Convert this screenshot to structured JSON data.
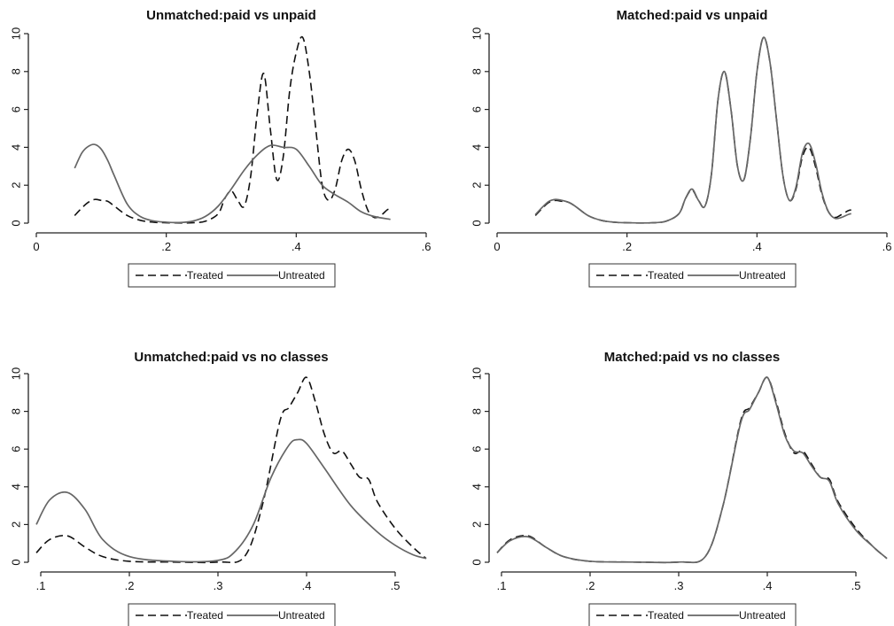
{
  "colors": {
    "treated": "#111111",
    "untreated": "#666666",
    "background": "#ffffff"
  },
  "legend": {
    "treated_label": "Treated",
    "untreated_label": "Untreated"
  },
  "chart_data": [
    {
      "type": "line",
      "title": "Unmatched:paid vs unpaid",
      "xlabel": "",
      "ylabel": "",
      "xlim": [
        0,
        0.6
      ],
      "ylim": [
        0,
        10
      ],
      "xticks": [
        0,
        0.2,
        0.4,
        0.6
      ],
      "xtick_labels": [
        "0",
        ".2",
        ".4",
        ".6"
      ],
      "yticks": [
        0,
        2,
        4,
        6,
        8,
        10
      ],
      "ytick_labels": [
        "0",
        "2",
        "4",
        "6",
        "8",
        "10"
      ],
      "legend_position": "bottom",
      "series": [
        {
          "name": "Treated",
          "style": "dashed",
          "x": [
            0.059,
            0.07,
            0.08,
            0.09,
            0.1,
            0.11,
            0.12,
            0.14,
            0.16,
            0.18,
            0.2,
            0.22,
            0.24,
            0.26,
            0.28,
            0.29,
            0.3,
            0.31,
            0.32,
            0.33,
            0.34,
            0.35,
            0.36,
            0.37,
            0.38,
            0.39,
            0.4,
            0.41,
            0.42,
            0.43,
            0.44,
            0.45,
            0.46,
            0.47,
            0.48,
            0.49,
            0.5,
            0.51,
            0.52,
            0.53,
            0.54,
            0.545
          ],
          "y": [
            0.4,
            0.8,
            1.1,
            1.25,
            1.2,
            1.15,
            0.9,
            0.4,
            0.15,
            0.05,
            0.02,
            0.01,
            0.02,
            0.1,
            0.5,
            1.3,
            1.7,
            1.2,
            0.9,
            2.5,
            5.8,
            7.9,
            5.0,
            2.3,
            3.5,
            7.0,
            9.0,
            9.8,
            8.0,
            5.0,
            2.0,
            1.2,
            1.8,
            3.3,
            3.9,
            3.3,
            1.8,
            0.7,
            0.3,
            0.4,
            0.7,
            0.75
          ]
        },
        {
          "name": "Untreated",
          "style": "solid",
          "x": [
            0.059,
            0.07,
            0.08,
            0.09,
            0.1,
            0.11,
            0.12,
            0.14,
            0.16,
            0.18,
            0.2,
            0.22,
            0.24,
            0.26,
            0.28,
            0.3,
            0.32,
            0.34,
            0.36,
            0.38,
            0.4,
            0.42,
            0.44,
            0.46,
            0.48,
            0.5,
            0.52,
            0.545
          ],
          "y": [
            2.9,
            3.7,
            4.05,
            4.15,
            3.9,
            3.3,
            2.5,
            1.0,
            0.35,
            0.12,
            0.05,
            0.03,
            0.1,
            0.35,
            0.9,
            1.8,
            2.8,
            3.6,
            4.1,
            4.0,
            3.9,
            3.0,
            2.0,
            1.5,
            1.1,
            0.6,
            0.35,
            0.2
          ]
        }
      ]
    },
    {
      "type": "line",
      "title": "Matched:paid vs unpaid",
      "xlabel": "",
      "ylabel": "",
      "xlim": [
        0,
        0.6
      ],
      "ylim": [
        0,
        10
      ],
      "xticks": [
        0,
        0.2,
        0.4,
        0.6
      ],
      "xtick_labels": [
        "0",
        ".2",
        ".4",
        ".6"
      ],
      "yticks": [
        0,
        2,
        4,
        6,
        8,
        10
      ],
      "ytick_labels": [
        "0",
        "2",
        "4",
        "6",
        "8",
        "10"
      ],
      "legend_position": "bottom",
      "series": [
        {
          "name": "Treated",
          "style": "dashed",
          "x": [
            0.059,
            0.07,
            0.08,
            0.09,
            0.1,
            0.11,
            0.12,
            0.14,
            0.16,
            0.18,
            0.2,
            0.22,
            0.24,
            0.26,
            0.28,
            0.29,
            0.3,
            0.31,
            0.32,
            0.33,
            0.34,
            0.35,
            0.36,
            0.37,
            0.38,
            0.39,
            0.4,
            0.41,
            0.42,
            0.43,
            0.44,
            0.45,
            0.46,
            0.47,
            0.48,
            0.49,
            0.5,
            0.51,
            0.52,
            0.53,
            0.54,
            0.545
          ],
          "y": [
            0.4,
            0.8,
            1.1,
            1.2,
            1.15,
            1.1,
            0.9,
            0.4,
            0.15,
            0.05,
            0.02,
            0.01,
            0.02,
            0.1,
            0.5,
            1.3,
            1.75,
            1.2,
            0.9,
            2.6,
            6.5,
            8.0,
            6.0,
            3.0,
            2.3,
            4.5,
            8.0,
            9.8,
            8.5,
            5.5,
            2.5,
            1.2,
            1.8,
            3.5,
            4.0,
            3.0,
            1.5,
            0.6,
            0.3,
            0.45,
            0.65,
            0.7
          ]
        },
        {
          "name": "Untreated",
          "style": "solid",
          "x": [
            0.059,
            0.07,
            0.08,
            0.09,
            0.1,
            0.11,
            0.12,
            0.14,
            0.16,
            0.18,
            0.2,
            0.22,
            0.24,
            0.26,
            0.28,
            0.29,
            0.3,
            0.31,
            0.32,
            0.33,
            0.34,
            0.35,
            0.36,
            0.37,
            0.38,
            0.39,
            0.4,
            0.41,
            0.42,
            0.43,
            0.44,
            0.45,
            0.46,
            0.47,
            0.48,
            0.49,
            0.5,
            0.51,
            0.52,
            0.53,
            0.54,
            0.545
          ],
          "y": [
            0.45,
            0.85,
            1.15,
            1.25,
            1.2,
            1.1,
            0.9,
            0.4,
            0.15,
            0.05,
            0.02,
            0.01,
            0.02,
            0.1,
            0.5,
            1.3,
            1.8,
            1.2,
            0.9,
            2.6,
            6.5,
            8.0,
            6.0,
            3.0,
            2.3,
            4.5,
            8.0,
            9.8,
            8.5,
            5.5,
            2.5,
            1.2,
            1.9,
            3.7,
            4.2,
            3.2,
            1.6,
            0.6,
            0.25,
            0.3,
            0.45,
            0.5
          ]
        }
      ]
    },
    {
      "type": "line",
      "title": "Unmatched:paid vs no classes",
      "xlabel": "",
      "ylabel": "",
      "xlim": [
        0.095,
        0.535
      ],
      "ylim": [
        0,
        10
      ],
      "xticks": [
        0.1,
        0.2,
        0.3,
        0.4,
        0.5
      ],
      "xtick_labels": [
        ".1",
        ".2",
        ".3",
        ".4",
        ".5"
      ],
      "yticks": [
        0,
        2,
        4,
        6,
        8,
        10
      ],
      "ytick_labels": [
        "0",
        "2",
        "4",
        "6",
        "8",
        "10"
      ],
      "legend_position": "bottom",
      "series": [
        {
          "name": "Treated",
          "style": "dashed",
          "x": [
            0.095,
            0.11,
            0.13,
            0.15,
            0.17,
            0.2,
            0.25,
            0.3,
            0.33,
            0.35,
            0.37,
            0.38,
            0.39,
            0.4,
            0.41,
            0.42,
            0.43,
            0.44,
            0.45,
            0.46,
            0.47,
            0.48,
            0.5,
            0.52,
            0.535
          ],
          "y": [
            0.5,
            1.2,
            1.4,
            0.8,
            0.3,
            0.05,
            0.01,
            0.01,
            0.3,
            3.0,
            7.5,
            8.2,
            9.0,
            9.8,
            8.5,
            6.8,
            5.8,
            5.9,
            5.2,
            4.5,
            4.4,
            3.2,
            1.8,
            0.8,
            0.2
          ]
        },
        {
          "name": "Untreated",
          "style": "solid",
          "x": [
            0.095,
            0.11,
            0.13,
            0.15,
            0.17,
            0.2,
            0.25,
            0.3,
            0.32,
            0.34,
            0.36,
            0.38,
            0.39,
            0.4,
            0.42,
            0.45,
            0.48,
            0.5,
            0.52,
            0.535
          ],
          "y": [
            2.0,
            3.3,
            3.7,
            2.8,
            1.2,
            0.3,
            0.05,
            0.1,
            0.6,
            2.0,
            4.5,
            6.2,
            6.5,
            6.3,
            5.0,
            3.0,
            1.6,
            0.9,
            0.4,
            0.2
          ]
        }
      ]
    },
    {
      "type": "line",
      "title": "Matched:paid vs no classes",
      "xlabel": "",
      "ylabel": "",
      "xlim": [
        0.095,
        0.535
      ],
      "ylim": [
        0,
        10
      ],
      "xticks": [
        0.1,
        0.2,
        0.3,
        0.4,
        0.5
      ],
      "xtick_labels": [
        ".1",
        ".2",
        ".3",
        ".4",
        ".5"
      ],
      "yticks": [
        0,
        2,
        4,
        6,
        8,
        10
      ],
      "ytick_labels": [
        "0",
        "2",
        "4",
        "6",
        "8",
        "10"
      ],
      "legend_position": "bottom",
      "series": [
        {
          "name": "Treated",
          "style": "dashed",
          "x": [
            0.095,
            0.11,
            0.13,
            0.15,
            0.17,
            0.2,
            0.25,
            0.3,
            0.33,
            0.35,
            0.37,
            0.38,
            0.39,
            0.4,
            0.41,
            0.42,
            0.43,
            0.44,
            0.45,
            0.46,
            0.47,
            0.48,
            0.5,
            0.52,
            0.535
          ],
          "y": [
            0.5,
            1.2,
            1.4,
            0.8,
            0.3,
            0.05,
            0.01,
            0.01,
            0.3,
            3.0,
            7.5,
            8.2,
            9.0,
            9.8,
            8.5,
            6.8,
            5.8,
            5.9,
            5.2,
            4.5,
            4.4,
            3.2,
            1.8,
            0.8,
            0.2
          ]
        },
        {
          "name": "Untreated",
          "style": "solid",
          "x": [
            0.095,
            0.11,
            0.13,
            0.15,
            0.17,
            0.2,
            0.25,
            0.3,
            0.33,
            0.35,
            0.37,
            0.38,
            0.39,
            0.4,
            0.41,
            0.42,
            0.43,
            0.44,
            0.45,
            0.46,
            0.47,
            0.48,
            0.5,
            0.52,
            0.535
          ],
          "y": [
            0.5,
            1.15,
            1.35,
            0.8,
            0.3,
            0.05,
            0.01,
            0.01,
            0.3,
            3.0,
            7.4,
            8.1,
            9.0,
            9.8,
            8.4,
            6.7,
            5.9,
            5.8,
            5.1,
            4.5,
            4.3,
            3.1,
            1.7,
            0.8,
            0.2
          ]
        }
      ]
    }
  ]
}
